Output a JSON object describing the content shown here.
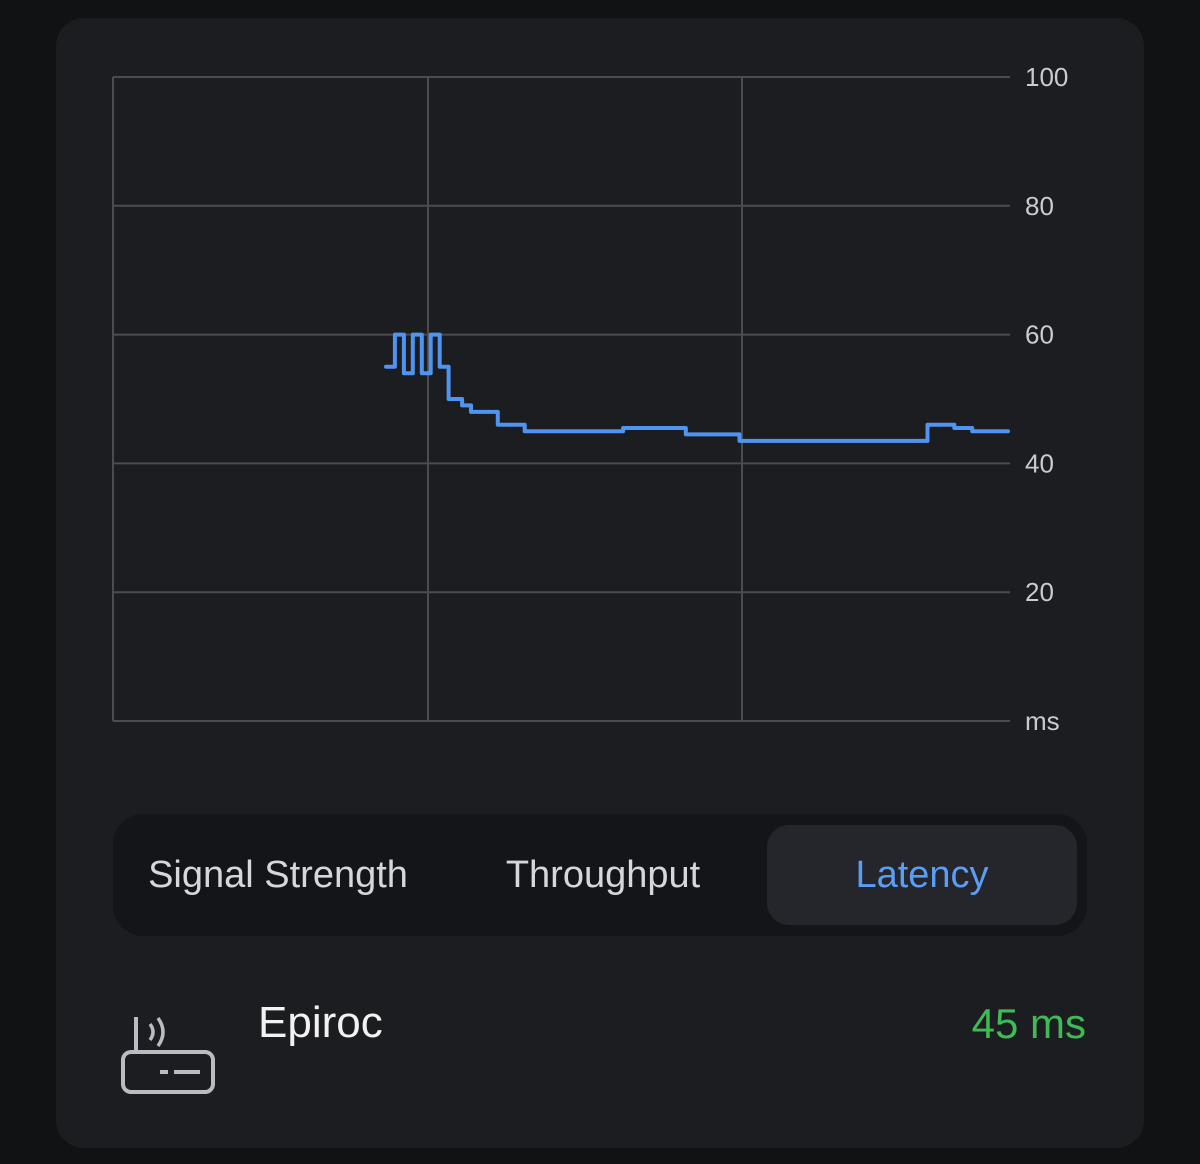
{
  "chart_data": {
    "type": "line",
    "title": "",
    "xlabel": "",
    "ylabel": "ms",
    "ylim": [
      0,
      100
    ],
    "yticks": [
      "100",
      "80",
      "60",
      "40",
      "20",
      "ms"
    ],
    "xlim": [
      0,
      1
    ],
    "grid": true,
    "series": [
      {
        "color": "#4f94f0",
        "x": [
          0.305,
          0.315,
          0.325,
          0.335,
          0.345,
          0.355,
          0.365,
          0.375,
          0.39,
          0.4,
          0.41,
          0.43,
          0.46,
          0.48,
          0.52,
          0.57,
          0.62,
          0.64,
          0.7,
          0.75,
          0.8,
          0.85,
          0.89,
          0.91,
          0.94,
          0.96,
          1.0
        ],
        "values": [
          55,
          60,
          54,
          60,
          54,
          60,
          55,
          50,
          49,
          48,
          48,
          46,
          45,
          45,
          45,
          45.5,
          45.5,
          44.5,
          43.5,
          43.5,
          43.5,
          43.5,
          43.5,
          46,
          45.5,
          45,
          45
        ]
      }
    ]
  },
  "tabs": {
    "signal_strength": "Signal Strength",
    "throughput": "Throughput",
    "latency": "Latency",
    "active": "latency"
  },
  "network": {
    "icon": "router-icon",
    "name": "Epiroc",
    "value": "45 ms",
    "value_color": "#3fba54"
  }
}
